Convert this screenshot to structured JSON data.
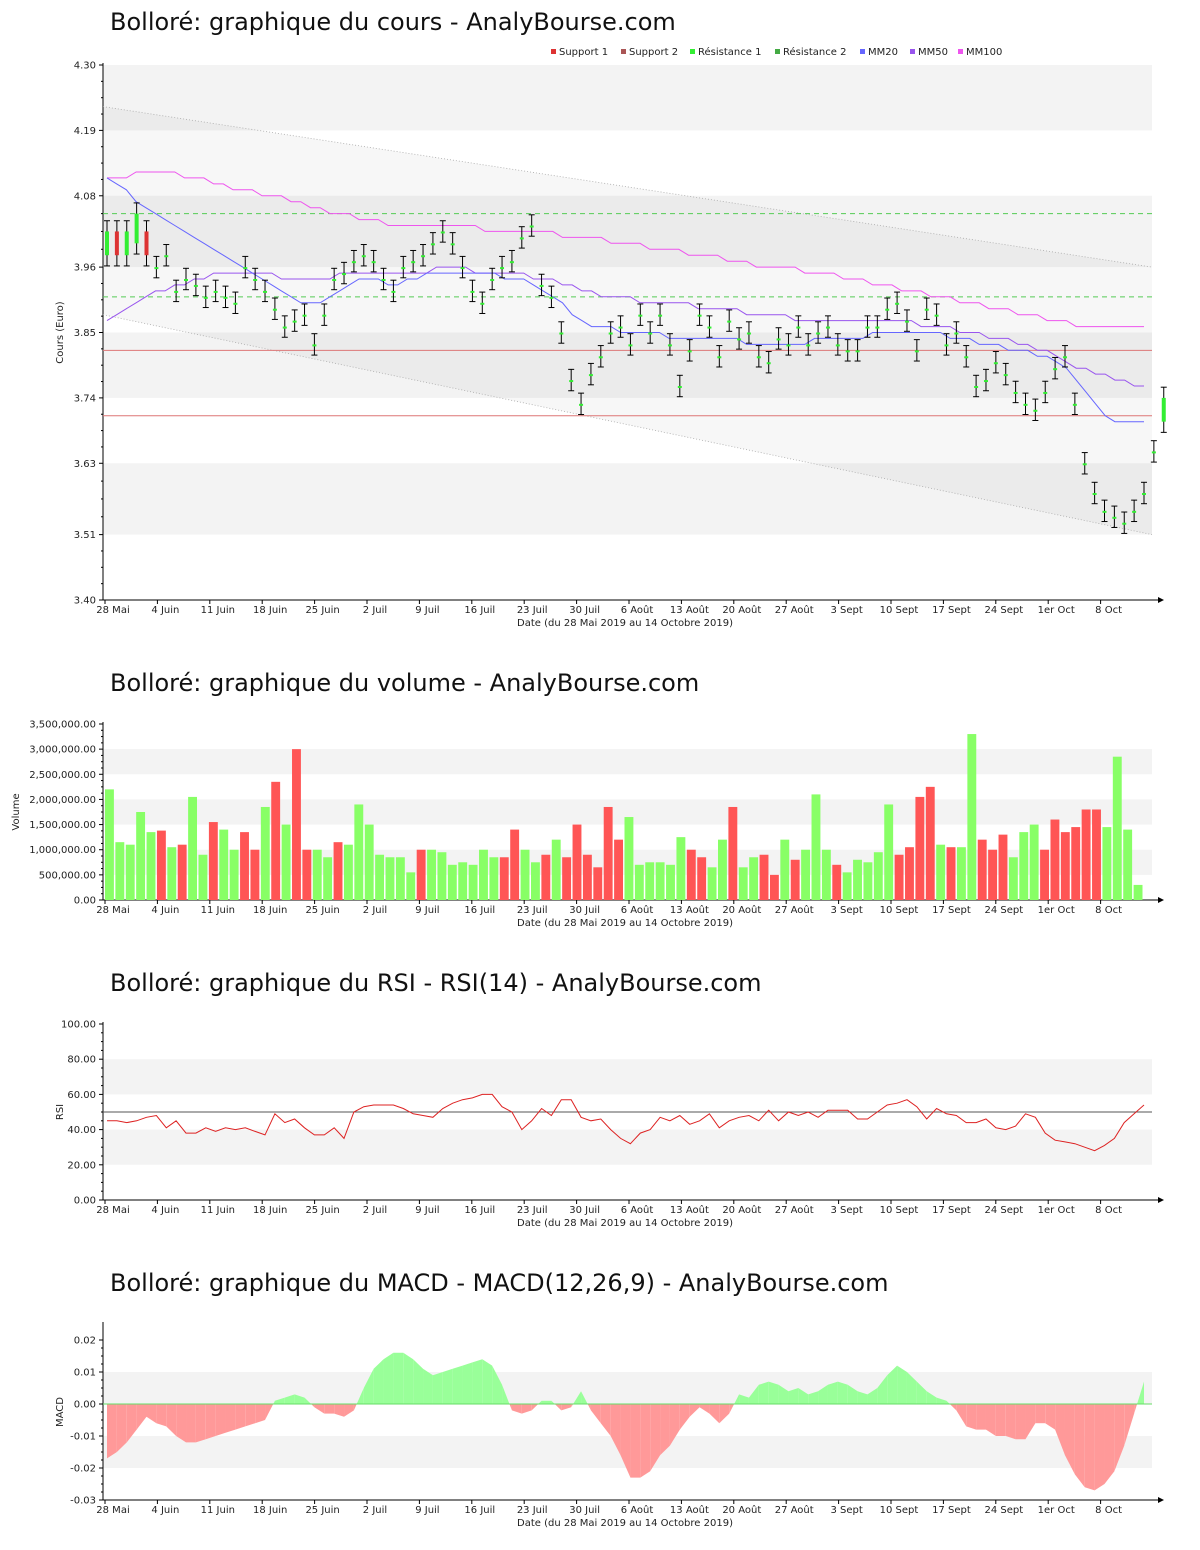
{
  "charts": {
    "price_title": "Bolloré: graphique du cours - AnalyBourse.com",
    "volume_title": "Bolloré: graphique du volume - AnalyBourse.com",
    "rsi_title": "Bolloré: graphique du RSI - RSI(14) - AnalyBourse.com",
    "macd_title": "Bolloré: graphique du MACD - MACD(12,26,9) - AnalyBourse.com"
  },
  "colors": {
    "up": "#33ee33",
    "down": "#dd3333",
    "vol_up": "#88ff66",
    "vol_down": "#ff5555",
    "mm20": "#6666ff",
    "mm50": "#9955ee",
    "mm100": "#ee55ee",
    "support": "#dd7777",
    "resistance": "#55cc55",
    "macd_pos": "#99ff99",
    "macd_neg": "#ff9999"
  },
  "chart_data": [
    {
      "type": "candlestick",
      "title": "Bolloré: graphique du cours - AnalyBourse.com",
      "xlabel": "Date (du 28 Mai 2019 au 14 Octobre 2019)",
      "ylabel": "Cours (Euro)",
      "ylim": [
        3.4,
        4.3
      ],
      "yticks": [
        "3.40",
        "3.51",
        "3.63",
        "3.74",
        "3.85",
        "3.96",
        "4.08",
        "4.19",
        "4.30"
      ],
      "xticks": [
        "28 Mai",
        "4 Juin",
        "11 Juin",
        "18 Juin",
        "25 Juin",
        "2 Juil",
        "9 Juil",
        "16 Juil",
        "23 Juil",
        "30 Juil",
        "6 Août",
        "13 Août",
        "20 Août",
        "27 Août",
        "3 Sept",
        "10 Sept",
        "17 Sept",
        "24 Sept",
        "1er Oct",
        "8 Oct"
      ],
      "legend": [
        "Support 1",
        "Support 2",
        "Résistance 1",
        "Résistance 2",
        "MM20",
        "MM50",
        "MM100"
      ],
      "legend_position": "top-right",
      "support_1": 3.71,
      "support_2": 3.82,
      "resistance_1": 3.91,
      "resistance_2": 4.05,
      "close": [
        4.02,
        3.98,
        4.02,
        4.05,
        3.98,
        3.96,
        3.98,
        3.92,
        3.94,
        3.93,
        3.91,
        3.92,
        3.91,
        3.9,
        3.96,
        3.94,
        3.92,
        3.89,
        3.86,
        3.87,
        3.88,
        3.83,
        3.88,
        3.94,
        3.95,
        3.97,
        3.98,
        3.97,
        3.94,
        3.92,
        3.96,
        3.97,
        3.98,
        4.0,
        4.02,
        4.0,
        3.96,
        3.92,
        3.9,
        3.94,
        3.96,
        3.97,
        4.01,
        4.03,
        3.93,
        3.91,
        3.85,
        3.77,
        3.73,
        3.78,
        3.81,
        3.85,
        3.86,
        3.83,
        3.88,
        3.85,
        3.88,
        3.83,
        3.76,
        3.82,
        3.88,
        3.86,
        3.81,
        3.87,
        3.84,
        3.85,
        3.81,
        3.8,
        3.84,
        3.83,
        3.86,
        3.83,
        3.85,
        3.86,
        3.83,
        3.82,
        3.82,
        3.86,
        3.86,
        3.89,
        3.9,
        3.87,
        3.82,
        3.89,
        3.88,
        3.83,
        3.85,
        3.81,
        3.76,
        3.77,
        3.8,
        3.78,
        3.75,
        3.73,
        3.72,
        3.75,
        3.79,
        3.81,
        3.73,
        3.63,
        3.58,
        3.55,
        3.54,
        3.53,
        3.55,
        3.58,
        3.65,
        3.74
      ],
      "open": [
        3.98,
        4.02,
        3.98,
        4.0,
        4.02,
        3.96,
        3.98,
        3.92,
        3.94,
        3.93,
        3.91,
        3.92,
        3.91,
        3.9,
        3.96,
        3.94,
        3.92,
        3.89,
        3.86,
        3.87,
        3.88,
        3.83,
        3.88,
        3.94,
        3.95,
        3.97,
        3.98,
        3.97,
        3.94,
        3.92,
        3.96,
        3.97,
        3.98,
        4.0,
        4.02,
        4.0,
        3.96,
        3.92,
        3.9,
        3.94,
        3.96,
        3.97,
        4.01,
        4.03,
        3.93,
        3.91,
        3.85,
        3.77,
        3.73,
        3.78,
        3.81,
        3.85,
        3.86,
        3.83,
        3.88,
        3.85,
        3.88,
        3.83,
        3.76,
        3.82,
        3.88,
        3.86,
        3.81,
        3.87,
        3.84,
        3.85,
        3.81,
        3.8,
        3.84,
        3.83,
        3.86,
        3.83,
        3.85,
        3.86,
        3.83,
        3.82,
        3.82,
        3.86,
        3.86,
        3.89,
        3.9,
        3.87,
        3.82,
        3.89,
        3.88,
        3.83,
        3.85,
        3.81,
        3.76,
        3.77,
        3.8,
        3.78,
        3.75,
        3.73,
        3.72,
        3.75,
        3.79,
        3.81,
        3.73,
        3.63,
        3.58,
        3.55,
        3.54,
        3.53,
        3.55,
        3.58,
        3.65,
        3.7
      ],
      "mm20": [
        4.11,
        4.1,
        4.09,
        4.07,
        4.06,
        4.05,
        4.04,
        4.03,
        4.02,
        4.01,
        4.0,
        3.99,
        3.98,
        3.97,
        3.96,
        3.95,
        3.94,
        3.93,
        3.92,
        3.91,
        3.9,
        3.9,
        3.9,
        3.91,
        3.92,
        3.93,
        3.94,
        3.94,
        3.94,
        3.93,
        3.93,
        3.94,
        3.94,
        3.95,
        3.95,
        3.95,
        3.95,
        3.95,
        3.95,
        3.95,
        3.95,
        3.94,
        3.94,
        3.94,
        3.93,
        3.92,
        3.91,
        3.9,
        3.88,
        3.87,
        3.86,
        3.86,
        3.86,
        3.85,
        3.85,
        3.85,
        3.85,
        3.85,
        3.84,
        3.84,
        3.84,
        3.84,
        3.84,
        3.84,
        3.84,
        3.84,
        3.83,
        3.83,
        3.83,
        3.83,
        3.83,
        3.83,
        3.83,
        3.84,
        3.84,
        3.84,
        3.84,
        3.84,
        3.84,
        3.85,
        3.85,
        3.85,
        3.85,
        3.85,
        3.85,
        3.85,
        3.85,
        3.84,
        3.84,
        3.84,
        3.83,
        3.83,
        3.83,
        3.82,
        3.82,
        3.82,
        3.81,
        3.81,
        3.8,
        3.79,
        3.77,
        3.75,
        3.73,
        3.71,
        3.7,
        3.7,
        3.7,
        3.7
      ],
      "mm50": [
        3.87,
        3.88,
        3.89,
        3.9,
        3.91,
        3.92,
        3.92,
        3.93,
        3.93,
        3.94,
        3.94,
        3.95,
        3.95,
        3.95,
        3.95,
        3.95,
        3.95,
        3.95,
        3.94,
        3.94,
        3.94,
        3.94,
        3.94,
        3.94,
        3.95,
        3.95,
        3.95,
        3.95,
        3.95,
        3.95,
        3.95,
        3.95,
        3.95,
        3.95,
        3.96,
        3.96,
        3.96,
        3.96,
        3.95,
        3.95,
        3.95,
        3.95,
        3.95,
        3.95,
        3.94,
        3.94,
        3.94,
        3.93,
        3.93,
        3.92,
        3.92,
        3.91,
        3.91,
        3.91,
        3.91,
        3.9,
        3.9,
        3.9,
        3.9,
        3.9,
        3.9,
        3.89,
        3.89,
        3.89,
        3.89,
        3.89,
        3.88,
        3.88,
        3.88,
        3.88,
        3.88,
        3.87,
        3.87,
        3.87,
        3.87,
        3.87,
        3.87,
        3.87,
        3.87,
        3.87,
        3.87,
        3.87,
        3.87,
        3.87,
        3.86,
        3.86,
        3.86,
        3.86,
        3.85,
        3.85,
        3.85,
        3.84,
        3.84,
        3.84,
        3.83,
        3.83,
        3.82,
        3.82,
        3.81,
        3.8,
        3.79,
        3.79,
        3.78,
        3.78,
        3.77,
        3.77,
        3.76,
        3.76
      ],
      "mm100": [
        4.11,
        4.11,
        4.11,
        4.12,
        4.12,
        4.12,
        4.12,
        4.12,
        4.11,
        4.11,
        4.11,
        4.1,
        4.1,
        4.09,
        4.09,
        4.09,
        4.08,
        4.08,
        4.08,
        4.07,
        4.07,
        4.06,
        4.06,
        4.05,
        4.05,
        4.05,
        4.04,
        4.04,
        4.04,
        4.03,
        4.03,
        4.03,
        4.03,
        4.03,
        4.03,
        4.03,
        4.03,
        4.03,
        4.03,
        4.02,
        4.02,
        4.02,
        4.02,
        4.02,
        4.02,
        4.02,
        4.02,
        4.01,
        4.01,
        4.01,
        4.01,
        4.01,
        4.0,
        4.0,
        4.0,
        4.0,
        3.99,
        3.99,
        3.99,
        3.99,
        3.98,
        3.98,
        3.98,
        3.98,
        3.97,
        3.97,
        3.97,
        3.96,
        3.96,
        3.96,
        3.96,
        3.96,
        3.95,
        3.95,
        3.95,
        3.95,
        3.94,
        3.94,
        3.94,
        3.93,
        3.93,
        3.93,
        3.92,
        3.92,
        3.92,
        3.91,
        3.91,
        3.91,
        3.9,
        3.9,
        3.9,
        3.89,
        3.89,
        3.89,
        3.88,
        3.88,
        3.88,
        3.87,
        3.87,
        3.87,
        3.86,
        3.86,
        3.86,
        3.86,
        3.86,
        3.86,
        3.86,
        3.86
      ]
    },
    {
      "type": "bar",
      "title": "Bolloré: graphique du volume - AnalyBourse.com",
      "xlabel": "Date (du 28 Mai 2019 au 14 Octobre 2019)",
      "ylabel": "Volume",
      "ylim": [
        0,
        3500000
      ],
      "yticks": [
        "0.00",
        "500,000.00",
        "1,000,000.00",
        "1,500,000.00",
        "2,000,000.00",
        "2,500,000.00",
        "3,000,000.00",
        "3,500,000.00"
      ],
      "values": [
        2200000,
        1150000,
        1100000,
        1750000,
        1350000,
        1380000,
        1050000,
        1100000,
        2050000,
        900000,
        1550000,
        1400000,
        1000000,
        1350000,
        1000000,
        1850000,
        2350000,
        1500000,
        3000000,
        1000000,
        1000000,
        850000,
        1150000,
        1100000,
        1900000,
        1500000,
        900000,
        850000,
        850000,
        550000,
        1000000,
        1000000,
        950000,
        700000,
        750000,
        700000,
        1000000,
        850000,
        850000,
        1400000,
        1000000,
        750000,
        900000,
        1200000,
        850000,
        1500000,
        900000,
        650000,
        1850000,
        1200000,
        1650000,
        700000,
        750000,
        750000,
        700000,
        1250000,
        1000000,
        850000,
        650000,
        1200000,
        1850000,
        650000,
        850000,
        900000,
        500000,
        1200000,
        800000,
        1000000,
        2100000,
        1000000,
        700000,
        550000,
        800000,
        750000,
        950000,
        1900000,
        900000,
        1050000,
        2050000,
        2250000,
        1100000,
        1050000,
        1050000,
        3300000,
        1200000,
        1000000,
        1300000,
        850000,
        1350000,
        1500000,
        1000000,
        1600000,
        1350000,
        1450000,
        1800000,
        1800000,
        1450000,
        2850000,
        1400000,
        300000
      ],
      "up": [
        1,
        1,
        1,
        1,
        1,
        0,
        1,
        0,
        1,
        1,
        0,
        1,
        1,
        0,
        0,
        1,
        0,
        1,
        0,
        0,
        1,
        1,
        0,
        1,
        1,
        1,
        1,
        1,
        1,
        1,
        0,
        1,
        1,
        1,
        1,
        1,
        1,
        1,
        0,
        0,
        1,
        1,
        0,
        1,
        0,
        0,
        0,
        0,
        0,
        0,
        1,
        1,
        1,
        1,
        1,
        1,
        0,
        0,
        1,
        1,
        0,
        1,
        1,
        0,
        0,
        1,
        0,
        1,
        1,
        1,
        0,
        1,
        1,
        1,
        1,
        1,
        0,
        0,
        0,
        0,
        1,
        0,
        1,
        1,
        0,
        0,
        0,
        1,
        1,
        1,
        0,
        0,
        0,
        0,
        0,
        0,
        1,
        1,
        1,
        1
      ]
    },
    {
      "type": "line",
      "title": "Bolloré: graphique du RSI - RSI(14) - AnalyBourse.com",
      "xlabel": "Date (du 28 Mai 2019 au 14 Octobre 2019)",
      "ylabel": "RSI",
      "ylim": [
        0,
        100
      ],
      "yticks": [
        "0.00",
        "20.00",
        "40.00",
        "60.00",
        "80.00",
        "100.00"
      ],
      "reference": 50,
      "values": [
        45,
        45,
        44,
        45,
        47,
        48,
        41,
        45,
        38,
        38,
        41,
        39,
        41,
        40,
        41,
        39,
        37,
        49,
        44,
        46,
        41,
        37,
        37,
        41,
        35,
        50,
        53,
        54,
        54,
        54,
        52,
        49,
        48,
        47,
        52,
        55,
        57,
        58,
        60,
        60,
        53,
        50,
        40,
        45,
        52,
        48,
        57,
        57,
        47,
        45,
        46,
        40,
        35,
        32,
        38,
        40,
        47,
        45,
        48,
        43,
        45,
        49,
        41,
        45,
        47,
        48,
        45,
        51,
        45,
        50,
        48,
        50,
        47,
        51,
        51,
        51,
        46,
        46,
        50,
        54,
        55,
        57,
        53,
        46,
        52,
        49,
        48,
        44,
        44,
        46,
        41,
        40,
        42,
        49,
        47,
        38,
        34,
        33,
        32,
        30,
        28,
        31,
        35,
        44,
        49,
        54
      ]
    },
    {
      "type": "area",
      "title": "Bolloré: graphique du MACD - MACD(12,26,9) - AnalyBourse.com",
      "xlabel": "Date (du 28 Mai 2019 au 14 Octobre 2019)",
      "ylabel": "MACD",
      "ylim": [
        -0.03,
        0.025
      ],
      "yticks": [
        "-0.03",
        "-0.02",
        "-0.01",
        "0.00",
        "0.01",
        "0.02"
      ],
      "values": [
        -0.017,
        -0.015,
        -0.012,
        -0.008,
        -0.004,
        -0.006,
        -0.007,
        -0.01,
        -0.012,
        -0.012,
        -0.011,
        -0.01,
        -0.009,
        -0.008,
        -0.007,
        -0.006,
        -0.005,
        0.001,
        0.002,
        0.003,
        0.002,
        -0.001,
        -0.003,
        -0.003,
        -0.004,
        -0.002,
        0.005,
        0.011,
        0.014,
        0.016,
        0.016,
        0.014,
        0.011,
        0.009,
        0.01,
        0.011,
        0.012,
        0.013,
        0.014,
        0.012,
        0.006,
        -0.002,
        -0.003,
        -0.002,
        0.001,
        0.001,
        -0.002,
        -0.001,
        0.004,
        -0.002,
        -0.006,
        -0.01,
        -0.016,
        -0.023,
        -0.023,
        -0.021,
        -0.016,
        -0.013,
        -0.008,
        -0.004,
        -0.001,
        -0.003,
        -0.006,
        -0.003,
        0.003,
        0.002,
        0.006,
        0.007,
        0.006,
        0.004,
        0.005,
        0.003,
        0.004,
        0.006,
        0.007,
        0.006,
        0.004,
        0.003,
        0.005,
        0.009,
        0.012,
        0.01,
        0.007,
        0.004,
        0.002,
        0.001,
        -0.002,
        -0.007,
        -0.008,
        -0.008,
        -0.01,
        -0.01,
        -0.011,
        -0.011,
        -0.006,
        -0.006,
        -0.008,
        -0.016,
        -0.022,
        -0.026,
        -0.027,
        -0.025,
        -0.021,
        -0.013,
        -0.003,
        0.007
      ]
    }
  ]
}
